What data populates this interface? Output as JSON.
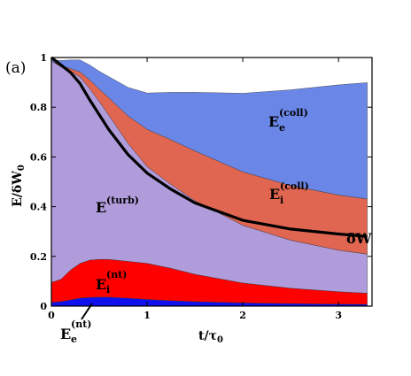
{
  "chart_data": {
    "type": "area",
    "panel_label": "(a)",
    "xlabel": "t/τ",
    "xlabel_sub": "0",
    "ylabel": "E/δW",
    "ylabel_sub": "0",
    "xlim": [
      0,
      3.35
    ],
    "ylim": [
      0,
      1
    ],
    "x_ticks": [
      {
        "value": 0,
        "label": "0"
      },
      {
        "value": 1,
        "label": "1"
      },
      {
        "value": 2,
        "label": "2"
      },
      {
        "value": 3,
        "label": "3"
      }
    ],
    "y_ticks": [
      {
        "value": 0,
        "label": "0"
      },
      {
        "value": 0.2,
        "label": "0.2"
      },
      {
        "value": 0.4,
        "label": "0.4"
      },
      {
        "value": 0.6,
        "label": "0.6"
      },
      {
        "value": 0.8,
        "label": "0.8"
      },
      {
        "value": 1,
        "label": "1"
      }
    ],
    "x": [
      0,
      0.1,
      0.2,
      0.3,
      0.4,
      0.5,
      0.6,
      0.8,
      1.0,
      1.25,
      1.5,
      2.0,
      2.5,
      3.0,
      3.3
    ],
    "series": [
      {
        "id": "Ee_nt",
        "label_main": "E",
        "label_sub": "e",
        "label_sup": "(nt)",
        "color": "#1010ee",
        "values": [
          0.015,
          0.018,
          0.025,
          0.032,
          0.035,
          0.036,
          0.036,
          0.032,
          0.027,
          0.022,
          0.018,
          0.013,
          0.01,
          0.008,
          0.007
        ]
      },
      {
        "id": "Ei_nt",
        "label_main": "E",
        "label_sub": "i",
        "label_sup": "(nt)",
        "color": "#ff0000",
        "values": [
          0.08,
          0.09,
          0.12,
          0.14,
          0.15,
          0.152,
          0.152,
          0.148,
          0.145,
          0.13,
          0.11,
          0.08,
          0.062,
          0.05,
          0.045
        ]
      },
      {
        "id": "E_turb",
        "label_main": "E",
        "label_sub": "",
        "label_sup": "(turb)",
        "color": "#b09cdb",
        "values": [
          0.89,
          0.855,
          0.8,
          0.75,
          0.69,
          0.635,
          0.58,
          0.475,
          0.389,
          0.337,
          0.296,
          0.232,
          0.193,
          0.167,
          0.157
        ]
      },
      {
        "id": "Ei_coll",
        "label_main": "E",
        "label_sub": "i",
        "label_sup": "(coll)",
        "color": "#e06651",
        "values": [
          0.0,
          0.005,
          0.01,
          0.02,
          0.035,
          0.05,
          0.07,
          0.11,
          0.15,
          0.18,
          0.2,
          0.215,
          0.22,
          0.222,
          0.222
        ]
      },
      {
        "id": "Ee_coll",
        "label_main": "E",
        "label_sub": "e",
        "label_sup": "(coll)",
        "color": "#6a87e8",
        "values": [
          0.005,
          0.02,
          0.035,
          0.048,
          0.06,
          0.072,
          0.085,
          0.115,
          0.146,
          0.191,
          0.236,
          0.316,
          0.385,
          0.443,
          0.468
        ]
      }
    ],
    "line": {
      "label": "δW",
      "color": "#000000",
      "values": [
        1.0,
        0.97,
        0.94,
        0.895,
        0.83,
        0.77,
        0.71,
        0.61,
        0.535,
        0.47,
        0.415,
        0.345,
        0.31,
        0.29,
        0.28
      ]
    }
  }
}
